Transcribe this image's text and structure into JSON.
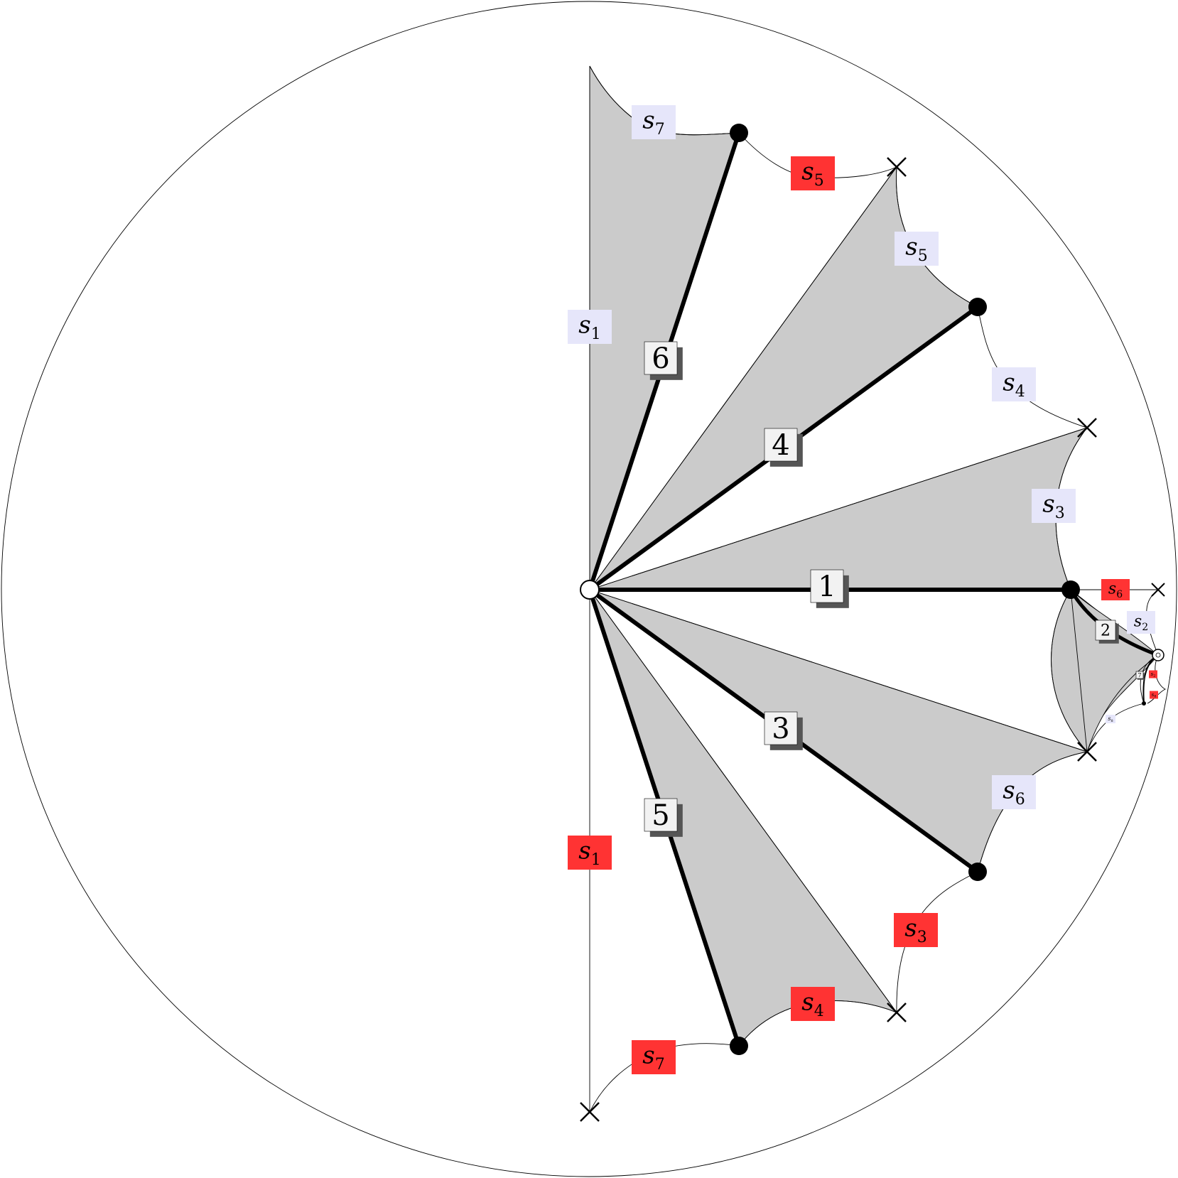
{
  "colors": {
    "fill": "#cbcbcb",
    "edge": "#000000",
    "label_light": "#e6e6fa",
    "label_red": "#ff3333",
    "number_box": "#f2f2f2",
    "number_shadow": "#555555"
  },
  "edge_numbers": [
    "1",
    "2",
    "3",
    "4",
    "5",
    "6",
    "7"
  ],
  "side_labels": {
    "light": [
      {
        "base": "s",
        "sub": "1"
      },
      {
        "base": "s",
        "sub": "7"
      },
      {
        "base": "s",
        "sub": "5"
      },
      {
        "base": "s",
        "sub": "4"
      },
      {
        "base": "s",
        "sub": "3"
      },
      {
        "base": "s",
        "sub": "2"
      },
      {
        "base": "s",
        "sub": "6"
      },
      {
        "base": "s",
        "sub": "8"
      }
    ],
    "red": [
      {
        "base": "s",
        "sub": "1"
      },
      {
        "base": "s",
        "sub": "5"
      },
      {
        "base": "s",
        "sub": "6"
      },
      {
        "base": "s",
        "sub": "3"
      },
      {
        "base": "s",
        "sub": "4"
      },
      {
        "base": "s",
        "sub": "7"
      },
      {
        "base": "s",
        "sub": "2"
      },
      {
        "base": "s",
        "sub": "8"
      }
    ]
  },
  "vertex_kinds": [
    "filled",
    "open",
    "cross"
  ]
}
